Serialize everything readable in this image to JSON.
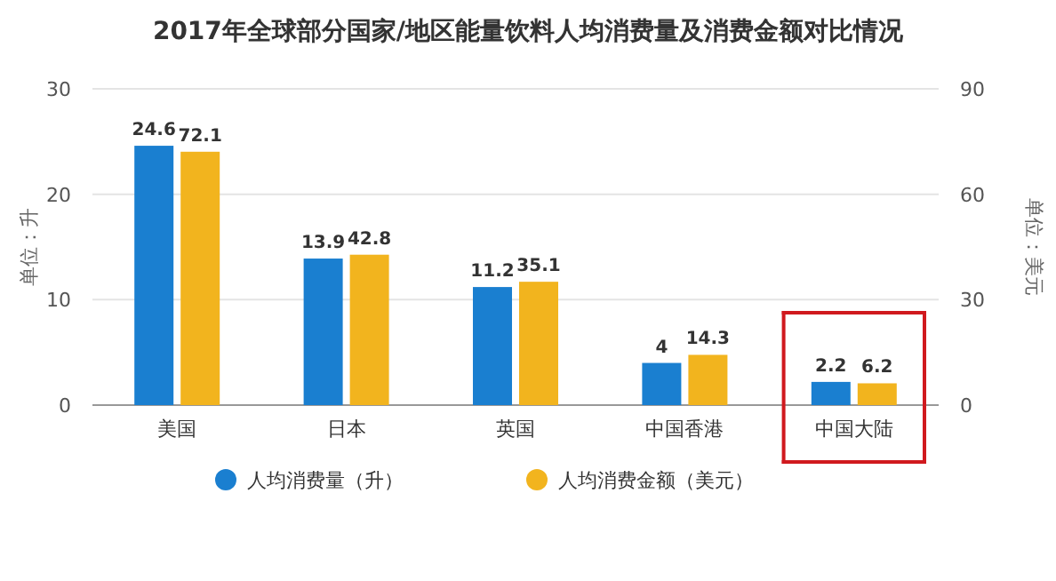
{
  "chart_data": {
    "type": "bar",
    "title": "2017年全球部分国家/地区能量饮料人均消费量及消费金额对比情况",
    "ylabel": "单位：升",
    "y2label": "单位：美元",
    "categories": [
      "美国",
      "日本",
      "英国",
      "中国香港",
      "中国大陆"
    ],
    "series": [
      {
        "name": "人均消费量（升）",
        "color": "#1a7fd0",
        "values": [
          24.6,
          13.9,
          11.2,
          4,
          2.2
        ]
      },
      {
        "name": "人均消费金额（美元）",
        "color": "#f2b41e",
        "values": [
          72.1,
          42.8,
          35.1,
          14.3,
          6.2
        ],
        "axis": "y2"
      }
    ],
    "ylim": [
      0,
      30
    ],
    "yticks": [
      0,
      10,
      20,
      30
    ],
    "y2lim": [
      0,
      90
    ],
    "y2ticks": [
      0,
      30,
      60,
      90
    ],
    "grid": "y",
    "legend": "bottom",
    "data_labels": true,
    "marker": "circle"
  }
}
